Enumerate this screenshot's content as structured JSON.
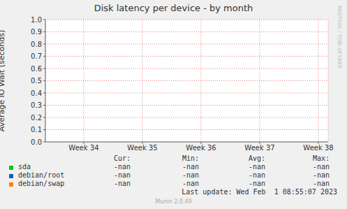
{
  "chart_data": {
    "type": "line",
    "title": "Disk latency per device - by month",
    "y_label": "Average IO Wait (seconds)",
    "categories": [
      "Week 34",
      "Week 35",
      "Week 36",
      "Week 37",
      "Week 38"
    ],
    "series": [
      {
        "name": "sda",
        "color": "#00cc00",
        "values": [
          null,
          null,
          null,
          null,
          null
        ],
        "stats": [
          "-nan",
          "-nan",
          "-nan",
          "-nan"
        ]
      },
      {
        "name": "debian/root",
        "color": "#0066b3",
        "values": [
          null,
          null,
          null,
          null,
          null
        ],
        "stats": [
          "-nan",
          "-nan",
          "-nan",
          "-nan"
        ]
      },
      {
        "name": "debian/swap",
        "color": "#ff8000",
        "values": [
          null,
          null,
          null,
          null,
          null
        ],
        "stats": [
          "-nan",
          "-nan",
          "-nan",
          "-nan"
        ]
      }
    ],
    "stats_columns": [
      "Cur:",
      "Min:",
      "Avg:",
      "Max:"
    ],
    "ylim": [
      0,
      1
    ],
    "yticks": [
      {
        "value": 0,
        "label": "0.0"
      },
      0.1,
      0.2,
      0.3,
      0.4,
      0.5,
      0.6,
      0.7,
      0.8,
      0.9,
      {
        "value": 1,
        "label": "1.0"
      }
    ],
    "grid": true,
    "last_update": "Last update: Wed Feb  1 08:55:07 2023",
    "footer": "Munin 2.0.49",
    "side_text": "RRDTOOL / TOBI OETIKER"
  }
}
